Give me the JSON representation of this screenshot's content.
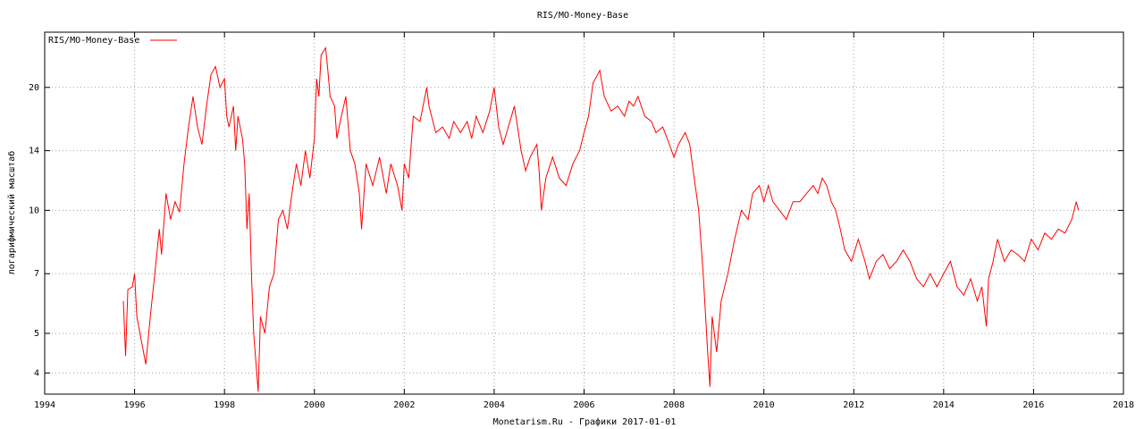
{
  "chart_data": {
    "type": "line",
    "title": "RIS/MO-Money-Base",
    "y_label": "логарифмический масштаб",
    "x_label": "Monetarism.Ru - Графики  2017-01-01",
    "log_y": true,
    "grid": true,
    "legend": "top-left",
    "xlim": [
      1994,
      2018
    ],
    "xticks": [
      1994,
      1996,
      1998,
      2000,
      2002,
      2004,
      2006,
      2008,
      2010,
      2012,
      2014,
      2016,
      2018
    ],
    "ylim": [
      3.55,
      27.3
    ],
    "yticks": [
      4,
      5,
      7,
      10,
      14,
      20
    ],
    "x": [
      1995.75,
      1995.8,
      1995.85,
      1995.95,
      1996.0,
      1996.05,
      1996.15,
      1996.25,
      1996.35,
      1996.45,
      1996.55,
      1996.6,
      1996.7,
      1996.8,
      1996.9,
      1997.0,
      1997.1,
      1997.2,
      1997.3,
      1997.4,
      1997.5,
      1997.6,
      1997.7,
      1997.8,
      1997.9,
      1998.0,
      1998.05,
      1998.1,
      1998.2,
      1998.25,
      1998.3,
      1998.4,
      1998.45,
      1998.5,
      1998.55,
      1998.6,
      1998.65,
      1998.75,
      1998.8,
      1998.9,
      1999.0,
      1999.1,
      1999.2,
      1999.3,
      1999.4,
      1999.5,
      1999.6,
      1999.7,
      1999.8,
      1999.9,
      2000.0,
      2000.05,
      2000.1,
      2000.15,
      2000.25,
      2000.3,
      2000.35,
      2000.45,
      2000.5,
      2000.6,
      2000.7,
      2000.8,
      2000.9,
      2001.0,
      2001.05,
      2001.15,
      2001.3,
      2001.45,
      2001.6,
      2001.7,
      2001.85,
      2001.95,
      2002.0,
      2002.1,
      2002.2,
      2002.35,
      2002.5,
      2002.55,
      2002.7,
      2002.85,
      2003.0,
      2003.1,
      2003.25,
      2003.4,
      2003.5,
      2003.6,
      2003.75,
      2003.9,
      2004.0,
      2004.1,
      2004.2,
      2004.35,
      2004.45,
      2004.6,
      2004.7,
      2004.8,
      2004.95,
      2005.0,
      2005.05,
      2005.15,
      2005.3,
      2005.45,
      2005.6,
      2005.75,
      2005.9,
      2006.0,
      2006.1,
      2006.2,
      2006.35,
      2006.45,
      2006.6,
      2006.75,
      2006.9,
      2007.0,
      2007.1,
      2007.2,
      2007.35,
      2007.5,
      2007.6,
      2007.75,
      2007.85,
      2008.0,
      2008.1,
      2008.25,
      2008.35,
      2008.45,
      2008.55,
      2008.65,
      2008.75,
      2008.8,
      2008.85,
      2008.95,
      2009.05,
      2009.2,
      2009.35,
      2009.5,
      2009.65,
      2009.75,
      2009.9,
      2010.0,
      2010.1,
      2010.2,
      2010.35,
      2010.5,
      2010.65,
      2010.8,
      2010.95,
      2011.1,
      2011.2,
      2011.3,
      2011.4,
      2011.5,
      2011.6,
      2011.7,
      2011.8,
      2011.95,
      2012.1,
      2012.25,
      2012.35,
      2012.5,
      2012.65,
      2012.8,
      2012.95,
      2013.1,
      2013.25,
      2013.4,
      2013.55,
      2013.7,
      2013.85,
      2014.0,
      2014.15,
      2014.3,
      2014.45,
      2014.6,
      2014.75,
      2014.85,
      2014.95,
      2015.0,
      2015.1,
      2015.2,
      2015.35,
      2015.5,
      2015.65,
      2015.8,
      2015.95,
      2016.1,
      2016.25,
      2016.4,
      2016.55,
      2016.7,
      2016.85,
      2016.95,
      2017.0
    ],
    "series": [
      {
        "name": "RIS/MO-Money-Base",
        "color": "#ff0000",
        "values": [
          6.0,
          4.4,
          6.4,
          6.5,
          7.0,
          5.5,
          4.8,
          4.2,
          5.5,
          7.0,
          9.0,
          7.8,
          11.0,
          9.5,
          10.5,
          9.9,
          13.0,
          16.0,
          19.0,
          16.0,
          14.5,
          18.0,
          21.5,
          22.5,
          20.0,
          21.0,
          17.0,
          16.0,
          18.0,
          14.0,
          17.0,
          15.0,
          13.0,
          9.0,
          11.0,
          7.0,
          5.0,
          3.6,
          5.5,
          5.0,
          6.5,
          7.0,
          9.5,
          10.0,
          9.0,
          11.0,
          13.0,
          11.5,
          14.0,
          12.0,
          15.0,
          21.0,
          19.0,
          24.0,
          25.0,
          22.0,
          19.0,
          18.0,
          15.0,
          17.0,
          19.0,
          14.0,
          13.0,
          11.0,
          9.0,
          13.0,
          11.5,
          13.5,
          11.0,
          13.0,
          11.5,
          10.0,
          13.0,
          12.0,
          17.0,
          16.5,
          20.0,
          18.0,
          15.5,
          16.0,
          15.0,
          16.5,
          15.5,
          16.5,
          15.0,
          17.0,
          15.5,
          17.5,
          20.0,
          16.0,
          14.5,
          16.5,
          18.0,
          14.0,
          12.5,
          13.5,
          14.5,
          12.5,
          10.0,
          12.0,
          13.5,
          12.0,
          11.5,
          13.0,
          14.0,
          15.5,
          17.0,
          20.5,
          22.0,
          19.0,
          17.5,
          18.0,
          17.0,
          18.5,
          18.0,
          19.0,
          17.0,
          16.5,
          15.5,
          16.0,
          15.0,
          13.5,
          14.5,
          15.5,
          14.5,
          12.0,
          10.0,
          7.0,
          4.5,
          3.7,
          5.5,
          4.5,
          6.0,
          7.0,
          8.5,
          10.0,
          9.5,
          11.0,
          11.5,
          10.5,
          11.5,
          10.5,
          10.0,
          9.5,
          10.5,
          10.5,
          11.0,
          11.5,
          11.0,
          12.0,
          11.5,
          10.5,
          10.0,
          9.0,
          8.0,
          7.5,
          8.5,
          7.5,
          6.8,
          7.5,
          7.8,
          7.2,
          7.5,
          8.0,
          7.5,
          6.8,
          6.5,
          7.0,
          6.5,
          7.0,
          7.5,
          6.5,
          6.2,
          6.8,
          6.0,
          6.5,
          5.2,
          6.8,
          7.5,
          8.5,
          7.5,
          8.0,
          7.8,
          7.5,
          8.5,
          8.0,
          8.8,
          8.5,
          9.0,
          8.8,
          9.5,
          10.5,
          10.0
        ]
      }
    ]
  }
}
